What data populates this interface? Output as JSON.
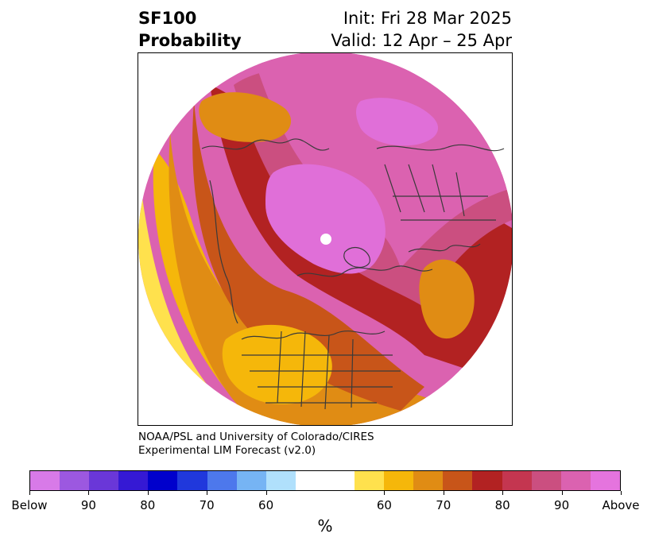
{
  "title": {
    "left_line1": "SF100",
    "left_line2": "Probability",
    "right_line1": "Init: Fri 28 Mar 2025",
    "right_line2": "Valid: 12 Apr – 25 Apr"
  },
  "credit": {
    "line1": "NOAA/PSL and University of Colorado/CIRES",
    "line2": "Experimental LIM Forecast (v2.0)"
  },
  "colorbar": {
    "colors": [
      "#d87ae8",
      "#9c58e0",
      "#6a37d8",
      "#3519d4",
      "#0000cc",
      "#2038dc",
      "#4d78ec",
      "#76b4f4",
      "#b0e0fc",
      "#ffffff",
      "#ffffff",
      "#ffe14d",
      "#f5b70a",
      "#e08c14",
      "#c85519",
      "#b22222",
      "#c43650",
      "#cb4f80",
      "#db62b0",
      "#e574de"
    ],
    "tick_labels": [
      "Below",
      "90",
      "80",
      "70",
      "60",
      "60",
      "70",
      "80",
      "90",
      "Above"
    ],
    "unit": "%"
  },
  "map": {
    "colors": {
      "magenta": "#e06fd8",
      "pink": "#db62b0",
      "rose": "#cb4f80",
      "red": "#b22222",
      "darkorange": "#c85519",
      "orange": "#e08c14",
      "gold": "#f5b70a",
      "yellow": "#ffe14d",
      "coast": "#3a3a3a"
    }
  }
}
